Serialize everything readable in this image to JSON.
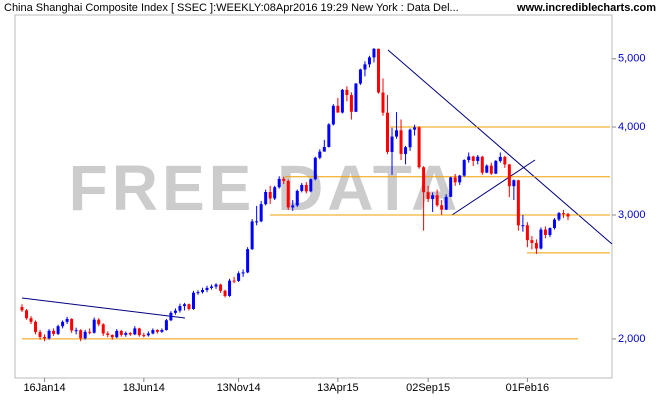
{
  "chart_data": {
    "type": "candlestick",
    "title": "China Shanghai Composite Index [ SSEC ]:WEEKLY:08Apr2016 19:29 New York : Data Del...",
    "source": "www.incrediblecharts.com",
    "watermark": "FREE DATA",
    "log_scale": true,
    "ylim": [
      1760,
      5770
    ],
    "yticks": [
      {
        "value": 2000,
        "label": "2,000"
      },
      {
        "value": 3000,
        "label": "3,000"
      },
      {
        "value": 4000,
        "label": "4,000"
      },
      {
        "value": 5000,
        "label": "5,000"
      }
    ],
    "up_color": "#0000ff",
    "down_color": "#ff0000",
    "level_color": "#f0a000",
    "levels": [
      4000,
      3400,
      3000,
      2650,
      2000
    ],
    "categories": [
      null,
      null,
      null,
      null,
      null,
      "16Jan14",
      null,
      null,
      null,
      null,
      null,
      null,
      null,
      null,
      null,
      null,
      null,
      null,
      null,
      null,
      null,
      null,
      null,
      null,
      null,
      null,
      null,
      "18Jun14",
      null,
      null,
      null,
      null,
      null,
      null,
      null,
      null,
      null,
      null,
      null,
      null,
      null,
      null,
      null,
      null,
      null,
      null,
      null,
      null,
      "13Nov14",
      null,
      null,
      null,
      null,
      null,
      null,
      null,
      null,
      null,
      null,
      null,
      null,
      null,
      null,
      null,
      null,
      null,
      null,
      null,
      null,
      null,
      "13Apr15",
      null,
      null,
      null,
      null,
      null,
      null,
      null,
      null,
      null,
      null,
      null,
      null,
      null,
      null,
      null,
      null,
      null,
      null,
      null,
      "02Sep15",
      null,
      null,
      null,
      null,
      null,
      null,
      null,
      null,
      null,
      null,
      null,
      null,
      null,
      null,
      null,
      null,
      null,
      null,
      null,
      null,
      null,
      "01Feb16",
      null,
      null,
      null,
      null,
      null,
      null,
      null,
      null,
      null
    ],
    "ohlc": [
      [
        2220,
        2240,
        2185,
        2196
      ],
      [
        2196,
        2205,
        2130,
        2140
      ],
      [
        2140,
        2155,
        2100,
        2115
      ],
      [
        2115,
        2125,
        2030,
        2045
      ],
      [
        2045,
        2060,
        1995,
        2013
      ],
      [
        2013,
        2030,
        1985,
        2004
      ],
      [
        2004,
        2065,
        1995,
        2054
      ],
      [
        2054,
        2070,
        2020,
        2033
      ],
      [
        2033,
        2095,
        2025,
        2085
      ],
      [
        2085,
        2125,
        2070,
        2115
      ],
      [
        2115,
        2150,
        2100,
        2135
      ],
      [
        2135,
        2140,
        2040,
        2056
      ],
      [
        2056,
        2075,
        2030,
        2058
      ],
      [
        2058,
        2065,
        1985,
        2004
      ],
      [
        2004,
        2060,
        1995,
        2047
      ],
      [
        2047,
        2070,
        2030,
        2041
      ],
      [
        2041,
        2145,
        2035,
        2130
      ],
      [
        2130,
        2140,
        2085,
        2098
      ],
      [
        2098,
        2105,
        2020,
        2036
      ],
      [
        2036,
        2050,
        2010,
        2026
      ],
      [
        2026,
        2030,
        1995,
        2011
      ],
      [
        2011,
        2065,
        2005,
        2053
      ],
      [
        2053,
        2060,
        2015,
        2027
      ],
      [
        2027,
        2050,
        2015,
        2039
      ],
      [
        2039,
        2045,
        2020,
        2030
      ],
      [
        2030,
        2085,
        2025,
        2070
      ],
      [
        2070,
        2075,
        2015,
        2025
      ],
      [
        2025,
        2040,
        2010,
        2024
      ],
      [
        2024,
        2050,
        2015,
        2036
      ],
      [
        2036,
        2070,
        2030,
        2059
      ],
      [
        2059,
        2065,
        2035,
        2047
      ],
      [
        2047,
        2070,
        2040,
        2059
      ],
      [
        2059,
        2135,
        2055,
        2126
      ],
      [
        2126,
        2190,
        2120,
        2178
      ],
      [
        2178,
        2210,
        2165,
        2194
      ],
      [
        2194,
        2245,
        2180,
        2227
      ],
      [
        2227,
        2250,
        2195,
        2240
      ],
      [
        2240,
        2245,
        2195,
        2206
      ],
      [
        2206,
        2340,
        2200,
        2326
      ],
      [
        2326,
        2345,
        2310,
        2331
      ],
      [
        2331,
        2365,
        2320,
        2347
      ],
      [
        2347,
        2380,
        2330,
        2363
      ],
      [
        2363,
        2390,
        2350,
        2374
      ],
      [
        2374,
        2400,
        2355,
        2389
      ],
      [
        2389,
        2395,
        2325,
        2341
      ],
      [
        2341,
        2350,
        2290,
        2302
      ],
      [
        2302,
        2435,
        2295,
        2420
      ],
      [
        2420,
        2450,
        2400,
        2418
      ],
      [
        2418,
        2495,
        2410,
        2479
      ],
      [
        2479,
        2510,
        2450,
        2486
      ],
      [
        2486,
        2700,
        2480,
        2683
      ],
      [
        2683,
        2960,
        2675,
        2937
      ],
      [
        2937,
        3090,
        2900,
        2938
      ],
      [
        2938,
        3140,
        2930,
        3108
      ],
      [
        3108,
        3260,
        3095,
        3234
      ],
      [
        3234,
        3300,
        3110,
        3166
      ],
      [
        3166,
        3300,
        3150,
        3285
      ],
      [
        3285,
        3405,
        3270,
        3376
      ],
      [
        3376,
        3400,
        3320,
        3353
      ],
      [
        3353,
        3370,
        3050,
        3075
      ],
      [
        3075,
        3150,
        3040,
        3095
      ],
      [
        3095,
        3260,
        3080,
        3246
      ],
      [
        3246,
        3330,
        3230,
        3310
      ],
      [
        3310,
        3340,
        3220,
        3241
      ],
      [
        3241,
        3380,
        3230,
        3372
      ],
      [
        3372,
        3630,
        3360,
        3617
      ],
      [
        3617,
        3720,
        3600,
        3691
      ],
      [
        3691,
        3835,
        3690,
        3747
      ],
      [
        3747,
        4050,
        3740,
        4034
      ],
      [
        4034,
        4310,
        4020,
        4287
      ],
      [
        4287,
        4400,
        4190,
        4194
      ],
      [
        4194,
        4530,
        4180,
        4517
      ],
      [
        4517,
        4570,
        4350,
        4441
      ],
      [
        4441,
        4480,
        4100,
        4205
      ],
      [
        4205,
        4620,
        4200,
        4611
      ],
      [
        4611,
        4840,
        4590,
        4828
      ],
      [
        4828,
        4960,
        4720,
        4910
      ],
      [
        4910,
        5050,
        4860,
        5023
      ],
      [
        5023,
        5178,
        4940,
        5166
      ],
      [
        5166,
        5170,
        4460,
        4478
      ],
      [
        4478,
        4690,
        4150,
        4192
      ],
      [
        4192,
        4440,
        3660,
        3687
      ],
      [
        3687,
        3990,
        3420,
        3877
      ],
      [
        3877,
        4200,
        3850,
        3957
      ],
      [
        3957,
        4100,
        3590,
        3663
      ],
      [
        3663,
        3760,
        3540,
        3744
      ],
      [
        3744,
        3980,
        3700,
        3965
      ],
      [
        3965,
        4030,
        3890,
        3995
      ],
      [
        3995,
        4010,
        3490,
        3507
      ],
      [
        3507,
        3520,
        2850,
        3232
      ],
      [
        3232,
        3300,
        3130,
        3160
      ],
      [
        3160,
        3230,
        3030,
        3200
      ],
      [
        3200,
        3260,
        3080,
        3097
      ],
      [
        3097,
        3150,
        3000,
        3052
      ],
      [
        3052,
        3210,
        3050,
        3183
      ],
      [
        3183,
        3400,
        3180,
        3391
      ],
      [
        3391,
        3430,
        3300,
        3338
      ],
      [
        3338,
        3420,
        3310,
        3412
      ],
      [
        3412,
        3600,
        3400,
        3590
      ],
      [
        3590,
        3680,
        3560,
        3632
      ],
      [
        3632,
        3640,
        3520,
        3580
      ],
      [
        3580,
        3650,
        3540,
        3630
      ],
      [
        3630,
        3640,
        3420,
        3445
      ],
      [
        3445,
        3540,
        3440,
        3525
      ],
      [
        3525,
        3560,
        3420,
        3434
      ],
      [
        3434,
        3590,
        3430,
        3580
      ],
      [
        3580,
        3680,
        3560,
        3627
      ],
      [
        3627,
        3640,
        3500,
        3539
      ],
      [
        3539,
        3545,
        3180,
        3296
      ],
      [
        3296,
        3370,
        3150,
        3361
      ],
      [
        3361,
        3365,
        2850,
        2900
      ],
      [
        2900,
        3000,
        2840,
        2901
      ],
      [
        2901,
        2930,
        2700,
        2763
      ],
      [
        2763,
        2800,
        2680,
        2737
      ],
      [
        2737,
        2770,
        2640,
        2688
      ],
      [
        2688,
        2880,
        2680,
        2860
      ],
      [
        2860,
        2890,
        2780,
        2810
      ],
      [
        2810,
        2880,
        2790,
        2874
      ],
      [
        2874,
        2970,
        2860,
        2955
      ],
      [
        2955,
        3030,
        2940,
        3018
      ],
      [
        3018,
        3050,
        2970,
        3009
      ],
      [
        3009,
        3020,
        2950,
        2985
      ]
    ]
  }
}
